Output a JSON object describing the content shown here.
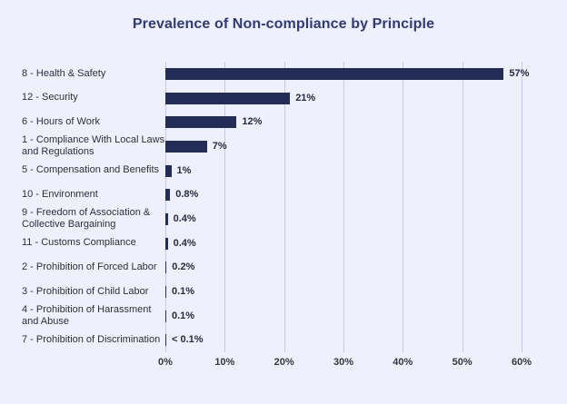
{
  "page": {
    "background_color": "#eef0fb"
  },
  "chart_data": {
    "type": "bar",
    "orientation": "horizontal",
    "title": "Prevalence of Non-compliance by Principle",
    "xlabel": "",
    "ylabel": "",
    "xlim": [
      0,
      60
    ],
    "grid": "vertical-gridlines-on",
    "legend": "none",
    "x_ticks": [
      {
        "value": 0,
        "label": "0%"
      },
      {
        "value": 10,
        "label": "10%"
      },
      {
        "value": 20,
        "label": "20%"
      },
      {
        "value": 30,
        "label": "30%"
      },
      {
        "value": 40,
        "label": "40%"
      },
      {
        "value": 50,
        "label": "50%"
      },
      {
        "value": 60,
        "label": "60%"
      }
    ],
    "categories": [
      "8 - Health & Safety",
      "12 - Security",
      "6 - Hours of Work",
      "1 - Compliance With Local Laws and Regulations",
      "5 - Compensation and Benefits",
      "10 - Environment",
      "9 - Freedom of Association & Collective Bargaining",
      "11 - Customs Compliance",
      "2 - Prohibition of Forced Labor",
      "3 - Prohibition of Child Labor",
      "4 - Prohibition of Harassment and Abuse",
      "7 - Prohibition of Discrimination"
    ],
    "category_lines": [
      [
        "8 - Health & Safety"
      ],
      [
        "12 - Security"
      ],
      [
        "6 - Hours of Work"
      ],
      [
        "1 - Compliance With Local Laws",
        "and Regulations"
      ],
      [
        "5 - Compensation and Benefits"
      ],
      [
        "10 - Environment"
      ],
      [
        "9 - Freedom of Association &",
        "Collective Bargaining"
      ],
      [
        "11 - Customs Compliance"
      ],
      [
        "2 - Prohibition of Forced Labor"
      ],
      [
        "3 - Prohibition of Child Labor"
      ],
      [
        "4 - Prohibition of Harassment",
        "and Abuse"
      ],
      [
        "7 - Prohibition of Discrimination"
      ]
    ],
    "values": [
      57,
      21,
      12,
      7,
      1,
      0.8,
      0.4,
      0.4,
      0.2,
      0.1,
      0.1,
      0.05
    ],
    "value_labels": [
      "57%",
      "21%",
      "12%",
      "7%",
      "1%",
      "0.8%",
      "0.4%",
      "0.4%",
      "0.2%",
      "0.1%",
      "0.1%",
      "< 0.1%"
    ],
    "colors": {
      "bar": "#242d57",
      "background": "#eef0fb",
      "gridline": "#c9cbe6",
      "title": "#2e3a7d",
      "category_label": "#2e2f38",
      "value_label": "#272b3f",
      "tick_label": "#35363e"
    }
  }
}
